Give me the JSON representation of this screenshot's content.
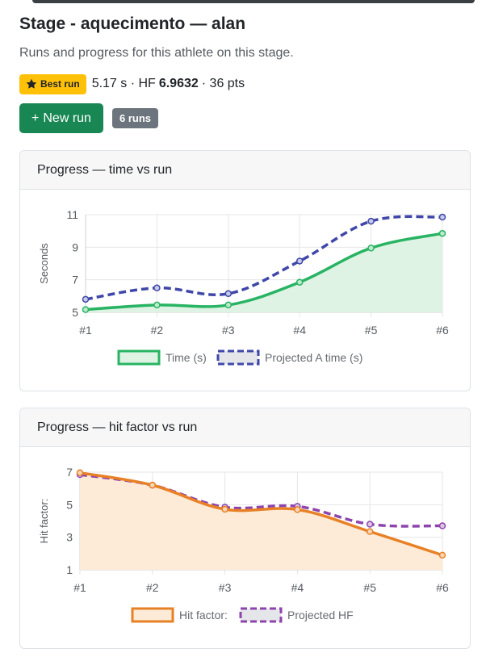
{
  "header": {
    "title": "Stage - aquecimento — alan",
    "subtitle": "Runs and progress for this athlete on this stage.",
    "best_badge": "Best run",
    "best_time": "5.17 s · HF",
    "best_hf": "6.9632",
    "best_points": "· 36 pts",
    "new_run_label": "New run",
    "runs_count": "6 runs"
  },
  "colors": {
    "success": "#198754",
    "warning": "#ffc107",
    "time_line": "#28b463",
    "time_fill": "#dff3e4",
    "projected_time": "#3f48a8",
    "hf_line": "#e88125",
    "hf_fill": "#fdebd8",
    "projected_hf": "#8e44ad"
  },
  "chart_data": [
    {
      "type": "line",
      "title": "Progress — time vs run",
      "categories": [
        "#1",
        "#2",
        "#3",
        "#4",
        "#5",
        "#6"
      ],
      "ylabel": "Seconds",
      "xlabel": "",
      "ylim": [
        5,
        11
      ],
      "yticks": [
        5,
        7,
        9,
        11
      ],
      "grid": true,
      "legend": "bottom",
      "series": [
        {
          "name": "Time (s)",
          "values": [
            5.17,
            5.45,
            5.45,
            6.85,
            8.95,
            9.85
          ],
          "style": "solid",
          "fill": true
        },
        {
          "name": "Projected A time (s)",
          "values": [
            5.8,
            6.5,
            6.15,
            8.15,
            10.6,
            10.85
          ],
          "style": "dashed",
          "fill": false
        }
      ]
    },
    {
      "type": "line",
      "title": "Progress — hit factor vs run",
      "categories": [
        "#1",
        "#2",
        "#3",
        "#4",
        "#5",
        "#6"
      ],
      "ylabel": "Hit factor:",
      "xlabel": "",
      "ylim": [
        1,
        7
      ],
      "yticks": [
        1,
        3,
        5,
        7
      ],
      "grid": true,
      "legend": "bottom",
      "series": [
        {
          "name": "Hit factor:",
          "values": [
            6.96,
            6.2,
            4.72,
            4.7,
            3.35,
            1.9
          ],
          "style": "solid",
          "fill": true
        },
        {
          "name": "Projected HF",
          "values": [
            6.85,
            6.2,
            4.85,
            4.9,
            3.8,
            3.7
          ],
          "style": "dashed",
          "fill": false
        }
      ]
    }
  ]
}
